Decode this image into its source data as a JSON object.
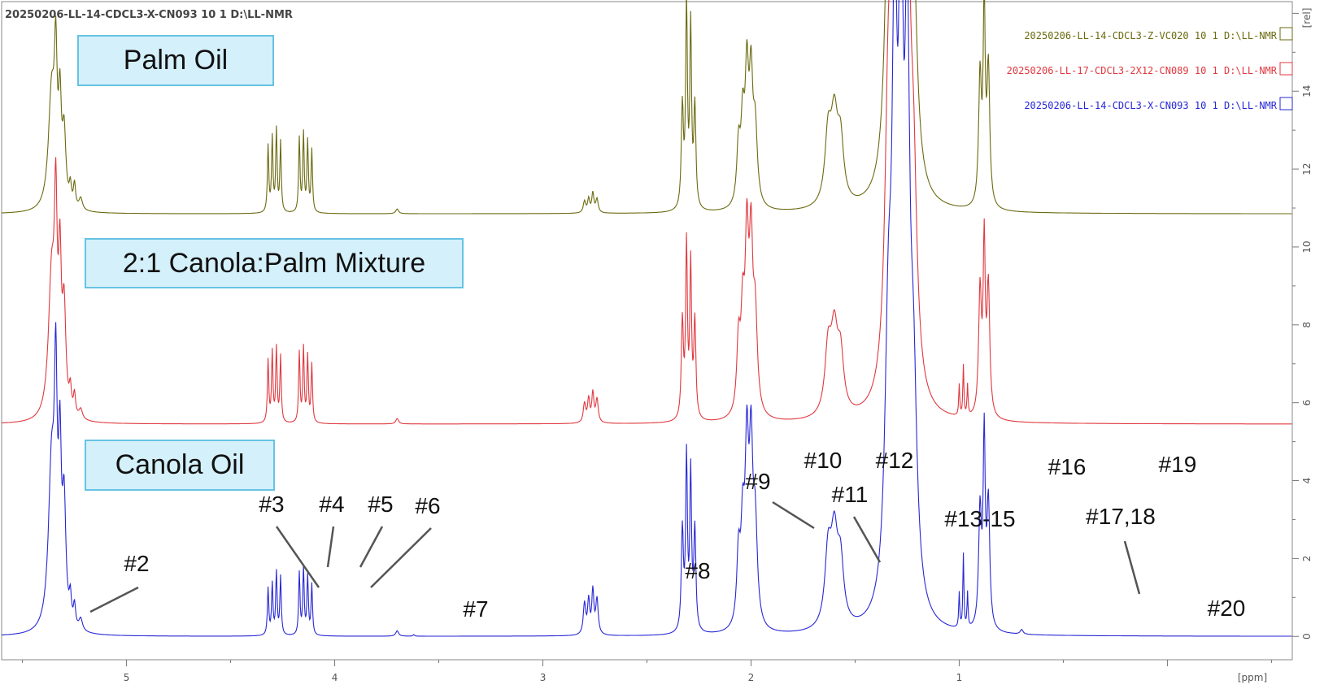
{
  "window": {
    "title": "20250206-LL-14-CDCL3-X-CN093  10  1  D:\\LL-NMR"
  },
  "labels": {
    "palm": "Palm Oil",
    "mix": "2:1 Canola:Palm Mixture",
    "canola": "Canola Oil"
  },
  "legend": [
    {
      "text": "20250206-LL-14-CDCL3-Z-VC020  10  1  D:\\LL-NMR",
      "color": "#6b6a10"
    },
    {
      "text": "20250206-LL-17-CDCL3-2X12-CN089  10  1  D:\\LL-NMR",
      "color": "#e0383f"
    },
    {
      "text": "20250206-LL-14-CDCL3-X-CN093  10  1  D:\\LL-NMR",
      "color": "#2727d6"
    }
  ],
  "chart_data": {
    "type": "line",
    "xlabel": "[ppm]",
    "ylabel": "[rel]",
    "xlim": [
      5.6,
      -0.6
    ],
    "ylim": [
      -0.6,
      16.3
    ],
    "x_ticks": [
      5,
      4,
      3,
      2,
      1
    ],
    "y_ticks": [
      0,
      2,
      4,
      6,
      8,
      10,
      12,
      14
    ],
    "series": [
      {
        "name": "20250206-LL-14-CDCL3-Z-VC020  10  1  D:\\LL-NMR",
        "color": "#6b6a10",
        "offset": 10.85
      },
      {
        "name": "20250206-LL-17-CDCL3-2X12-CN089  10  1  D:\\LL-NMR",
        "color": "#e0383f",
        "offset": 5.45
      },
      {
        "name": "20250206-LL-14-CDCL3-X-CN093  10  1  D:\\LL-NMR",
        "color": "#2727d6",
        "offset": 0
      }
    ],
    "peaks_canola": [
      [
        5.36,
        4.2,
        0.018
      ],
      [
        5.34,
        5.45,
        0.008
      ],
      [
        5.32,
        4.0,
        0.008
      ],
      [
        5.3,
        3.0,
        0.01
      ],
      [
        5.27,
        0.65,
        0.006
      ],
      [
        5.25,
        0.55,
        0.006
      ],
      [
        5.22,
        0.3,
        0.01
      ],
      [
        4.32,
        1.2,
        0.004
      ],
      [
        4.3,
        1.3,
        0.004
      ],
      [
        4.28,
        1.6,
        0.004
      ],
      [
        4.26,
        1.5,
        0.004
      ],
      [
        4.17,
        1.6,
        0.004
      ],
      [
        4.15,
        1.7,
        0.004
      ],
      [
        4.13,
        1.5,
        0.004
      ],
      [
        4.11,
        1.3,
        0.004
      ],
      [
        3.7,
        0.14,
        0.008
      ],
      [
        3.62,
        0.04,
        0.004
      ],
      [
        2.8,
        0.8,
        0.007
      ],
      [
        2.78,
        0.85,
        0.006
      ],
      [
        2.76,
        1.1,
        0.006
      ],
      [
        2.74,
        0.9,
        0.007
      ],
      [
        2.33,
        2.6,
        0.006
      ],
      [
        2.31,
        4.4,
        0.005
      ],
      [
        2.29,
        4.0,
        0.005
      ],
      [
        2.27,
        2.6,
        0.006
      ],
      [
        2.06,
        1.8,
        0.01
      ],
      [
        2.04,
        2.3,
        0.01
      ],
      [
        2.02,
        4.3,
        0.01
      ],
      [
        2.0,
        4.2,
        0.01
      ],
      [
        1.98,
        2.5,
        0.012
      ],
      [
        1.63,
        1.8,
        0.018
      ],
      [
        1.6,
        2.2,
        0.02
      ],
      [
        1.57,
        1.5,
        0.018
      ],
      [
        1.34,
        6.5,
        0.02
      ],
      [
        1.31,
        13.5,
        0.015
      ],
      [
        1.28,
        14.5,
        0.012
      ],
      [
        1.25,
        13.0,
        0.015
      ],
      [
        1.22,
        5.0,
        0.02
      ],
      [
        1.0,
        0.9,
        0.003
      ],
      [
        0.98,
        1.9,
        0.003
      ],
      [
        0.96,
        0.9,
        0.003
      ],
      [
        0.9,
        3.0,
        0.008
      ],
      [
        0.88,
        4.8,
        0.006
      ],
      [
        0.86,
        3.2,
        0.008
      ],
      [
        0.7,
        0.12,
        0.008
      ]
    ],
    "peaks_mixture": [
      [
        5.36,
        3.6,
        0.018
      ],
      [
        5.34,
        4.6,
        0.008
      ],
      [
        5.32,
        3.5,
        0.008
      ],
      [
        5.3,
        2.6,
        0.01
      ],
      [
        5.27,
        0.6,
        0.006
      ],
      [
        5.25,
        0.55,
        0.006
      ],
      [
        5.22,
        0.25,
        0.01
      ],
      [
        4.32,
        1.6,
        0.004
      ],
      [
        4.3,
        1.8,
        0.004
      ],
      [
        4.28,
        1.9,
        0.004
      ],
      [
        4.26,
        1.7,
        0.004
      ],
      [
        4.17,
        1.8,
        0.004
      ],
      [
        4.15,
        1.9,
        0.004
      ],
      [
        4.13,
        1.7,
        0.004
      ],
      [
        4.11,
        1.5,
        0.004
      ],
      [
        3.7,
        0.14,
        0.008
      ],
      [
        2.8,
        0.5,
        0.007
      ],
      [
        2.78,
        0.6,
        0.006
      ],
      [
        2.76,
        0.75,
        0.006
      ],
      [
        2.74,
        0.6,
        0.007
      ],
      [
        2.33,
        2.5,
        0.006
      ],
      [
        2.31,
        4.4,
        0.005
      ],
      [
        2.29,
        3.9,
        0.005
      ],
      [
        2.27,
        2.5,
        0.006
      ],
      [
        2.06,
        1.8,
        0.01
      ],
      [
        2.04,
        2.3,
        0.01
      ],
      [
        2.02,
        4.2,
        0.01
      ],
      [
        2.0,
        4.0,
        0.01
      ],
      [
        1.98,
        2.4,
        0.012
      ],
      [
        1.63,
        1.6,
        0.018
      ],
      [
        1.6,
        2.0,
        0.02
      ],
      [
        1.57,
        1.4,
        0.018
      ],
      [
        1.34,
        7.0,
        0.02
      ],
      [
        1.31,
        13.0,
        0.015
      ],
      [
        1.28,
        14.0,
        0.012
      ],
      [
        1.25,
        12.5,
        0.015
      ],
      [
        1.22,
        5.0,
        0.02
      ],
      [
        1.0,
        0.8,
        0.003
      ],
      [
        0.98,
        1.3,
        0.003
      ],
      [
        0.96,
        0.8,
        0.003
      ],
      [
        0.9,
        3.2,
        0.008
      ],
      [
        0.88,
        4.3,
        0.006
      ],
      [
        0.86,
        3.3,
        0.008
      ]
    ],
    "peaks_palm": [
      [
        5.36,
        3.0,
        0.018
      ],
      [
        5.34,
        3.3,
        0.008
      ],
      [
        5.32,
        2.4,
        0.008
      ],
      [
        5.3,
        1.8,
        0.01
      ],
      [
        5.27,
        0.5,
        0.006
      ],
      [
        5.25,
        0.6,
        0.006
      ],
      [
        5.22,
        0.3,
        0.01
      ],
      [
        4.32,
        1.7,
        0.004
      ],
      [
        4.3,
        1.9,
        0.004
      ],
      [
        4.28,
        2.1,
        0.004
      ],
      [
        4.26,
        1.8,
        0.004
      ],
      [
        4.17,
        1.9,
        0.004
      ],
      [
        4.15,
        2.0,
        0.004
      ],
      [
        4.13,
        1.8,
        0.004
      ],
      [
        4.11,
        1.6,
        0.004
      ],
      [
        3.7,
        0.12,
        0.008
      ],
      [
        2.8,
        0.3,
        0.007
      ],
      [
        2.78,
        0.35,
        0.006
      ],
      [
        2.76,
        0.5,
        0.006
      ],
      [
        2.74,
        0.35,
        0.007
      ],
      [
        2.33,
        2.6,
        0.006
      ],
      [
        2.31,
        5.2,
        0.005
      ],
      [
        2.29,
        4.6,
        0.005
      ],
      [
        2.27,
        2.6,
        0.006
      ],
      [
        2.06,
        1.5,
        0.01
      ],
      [
        2.04,
        2.0,
        0.01
      ],
      [
        2.02,
        3.2,
        0.01
      ],
      [
        2.0,
        3.0,
        0.01
      ],
      [
        1.98,
        1.9,
        0.012
      ],
      [
        1.63,
        1.7,
        0.018
      ],
      [
        1.6,
        2.1,
        0.02
      ],
      [
        1.57,
        1.5,
        0.018
      ],
      [
        1.34,
        6.0,
        0.02
      ],
      [
        1.31,
        12.0,
        0.015
      ],
      [
        1.28,
        13.0,
        0.012
      ],
      [
        1.25,
        11.5,
        0.015
      ],
      [
        1.22,
        4.5,
        0.02
      ],
      [
        0.9,
        3.3,
        0.008
      ],
      [
        0.88,
        5.0,
        0.006
      ],
      [
        0.86,
        3.5,
        0.008
      ]
    ],
    "annotations": [
      {
        "text": "#2",
        "x": 5.2
      },
      {
        "text": "#3",
        "x": 4.32
      },
      {
        "text": "#4",
        "x": 4.28
      },
      {
        "text": "#5",
        "x": 4.17
      },
      {
        "text": "#6",
        "x": 4.12
      },
      {
        "text": "#7",
        "x": 3.7
      },
      {
        "text": "#8",
        "x": 2.77
      },
      {
        "text": "#9",
        "x": 2.33
      },
      {
        "text": "#10",
        "x": 2.31
      },
      {
        "text": "#11",
        "x": 2.06
      },
      {
        "text": "#12",
        "x": 2.01
      },
      {
        "text": "#13-15",
        "x": 1.6
      },
      {
        "text": "#16",
        "x": 1.31
      },
      {
        "text": "#17,18",
        "x": 0.98
      },
      {
        "text": "#19",
        "x": 0.88
      },
      {
        "text": "#20",
        "x": 0.7
      }
    ]
  }
}
